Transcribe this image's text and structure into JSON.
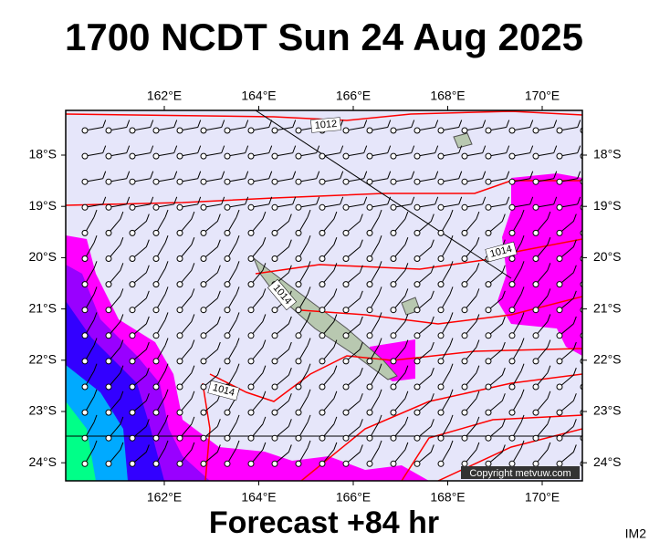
{
  "header": {
    "title": "1700 NCDT Sun 24 Aug 2025"
  },
  "map": {
    "lon_labels": [
      "162°E",
      "164°E",
      "166°E",
      "168°E",
      "170°E"
    ],
    "lat_labels": [
      "18°S",
      "19°S",
      "20°S",
      "21°S",
      "22°S",
      "23°S",
      "24°S"
    ],
    "isobar_labels": [
      "1012",
      "1014",
      "1014",
      "1014"
    ],
    "copyright": "Copyright metvuw.com"
  },
  "footer": {
    "forecast": "Forecast +84 hr",
    "code": "IM2"
  }
}
